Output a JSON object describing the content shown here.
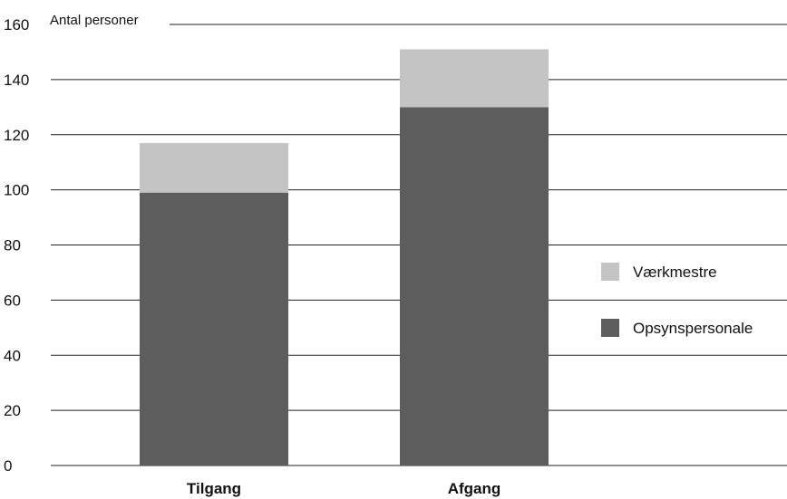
{
  "chart_data": {
    "type": "bar",
    "stacked": true,
    "ylabel": "Antal personer",
    "xlabel": "",
    "ylim": [
      0,
      160
    ],
    "yticks": [
      0,
      20,
      40,
      60,
      80,
      100,
      120,
      140,
      160
    ],
    "categories": [
      "Tilgang",
      "Afgang"
    ],
    "series": [
      {
        "name": "Opsynspersonale",
        "values": [
          99,
          130
        ],
        "color": "#5d5d5d"
      },
      {
        "name": "Værkmestre",
        "values": [
          18,
          21
        ],
        "color": "#c4c4c4"
      }
    ],
    "legend_order": [
      "Værkmestre",
      "Opsynspersonale"
    ],
    "legend_position": "right",
    "grid": true
  }
}
